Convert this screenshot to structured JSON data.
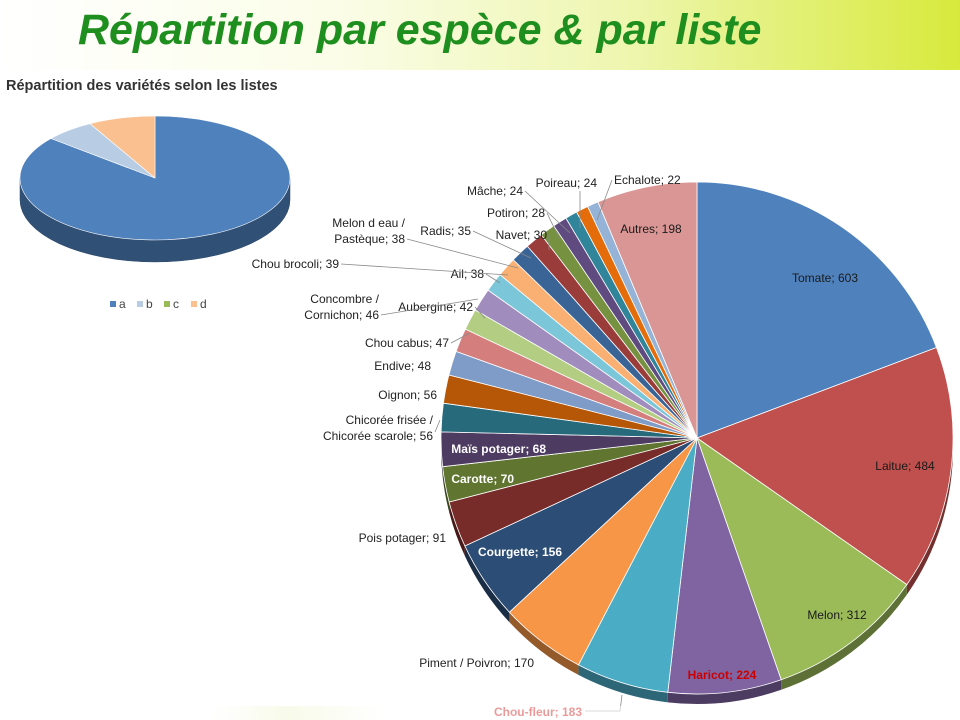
{
  "header": {
    "title": "Répartition par espèce & par liste"
  },
  "chart_data": [
    {
      "type": "pie",
      "title": "Répartition des variétés selon les listes",
      "three_d": true,
      "legend_position": "bottom",
      "categories": [
        "a",
        "b",
        "c",
        "d"
      ],
      "values": [
        86,
        6,
        0,
        8
      ],
      "colors": [
        "#4f81bd",
        "#b8cce4",
        "#9bbb59",
        "#fac090"
      ]
    },
    {
      "type": "pie",
      "title": "",
      "three_d": true,
      "legend_position": "none",
      "data_labels": "category; value",
      "slices": [
        {
          "label": "Tomate; 603",
          "value": 603,
          "color": "#4f81bd",
          "style": "in"
        },
        {
          "label": "Laitue; 484",
          "value": 484,
          "color": "#c0504d",
          "style": "in"
        },
        {
          "label": "Melon; 312",
          "value": 312,
          "color": "#9bbb59",
          "style": "in"
        },
        {
          "label": "Haricot; 224",
          "value": 224,
          "color": "#8064a2",
          "style": "red"
        },
        {
          "label": "Chou-fleur; 183",
          "value": 183,
          "color": "#4bacc6",
          "style": "red"
        },
        {
          "label": "Piment / Poivron; 170",
          "value": 170,
          "color": "#f79646",
          "style": "out"
        },
        {
          "label": "Courgette; 156",
          "value": 156,
          "color": "#2c4d75",
          "style": "white"
        },
        {
          "label": "Pois potager; 91",
          "value": 91,
          "color": "#772c2a",
          "style": "out"
        },
        {
          "label": "Carotte; 70",
          "value": 70,
          "color": "#5f7530",
          "style": "white"
        },
        {
          "label": "Maïs potager; 68",
          "value": 68,
          "color": "#4d3b62",
          "style": "white"
        },
        {
          "label": "Chicorée frisée / Chicorée scarole; 56",
          "value": 56,
          "color": "#276a7c",
          "style": "out"
        },
        {
          "label": "Oignon; 56",
          "value": 56,
          "color": "#b65708",
          "style": "out"
        },
        {
          "label": "Endive; 48",
          "value": 48,
          "color": "#7f9cc8",
          "style": "out"
        },
        {
          "label": "Chou cabus; 47",
          "value": 47,
          "color": "#d47f7d",
          "style": "out"
        },
        {
          "label": "Aubergine; 42",
          "value": 42,
          "color": "#b3ce82",
          "style": "out"
        },
        {
          "label": "Concombre / Cornichon; 46",
          "value": 46,
          "color": "#a08cbd",
          "style": "out"
        },
        {
          "label": "Ail; 38",
          "value": 38,
          "color": "#7cc6d9",
          "style": "out"
        },
        {
          "label": "Chou brocoli; 39",
          "value": 39,
          "color": "#f9b072",
          "style": "out"
        },
        {
          "label": "Melon d eau / Pastèque; 38",
          "value": 38,
          "color": "#3a6496",
          "style": "out"
        },
        {
          "label": "Radis; 35",
          "value": 35,
          "color": "#993c3a",
          "style": "out"
        },
        {
          "label": "Navet; 30",
          "value": 30,
          "color": "#76913f",
          "style": "out"
        },
        {
          "label": "Potiron; 28",
          "value": 28,
          "color": "#5f4b80",
          "style": "out"
        },
        {
          "label": "Mâche; 24",
          "value": 24,
          "color": "#31859b",
          "style": "out"
        },
        {
          "label": "Poireau; 24",
          "value": 24,
          "color": "#e46c0a",
          "style": "out"
        },
        {
          "label": "Echalote; 22",
          "value": 22,
          "color": "#95b3d7",
          "style": "out"
        },
        {
          "label": "Autres; 198",
          "value": 198,
          "color": "#d99694",
          "style": "in"
        }
      ]
    }
  ]
}
